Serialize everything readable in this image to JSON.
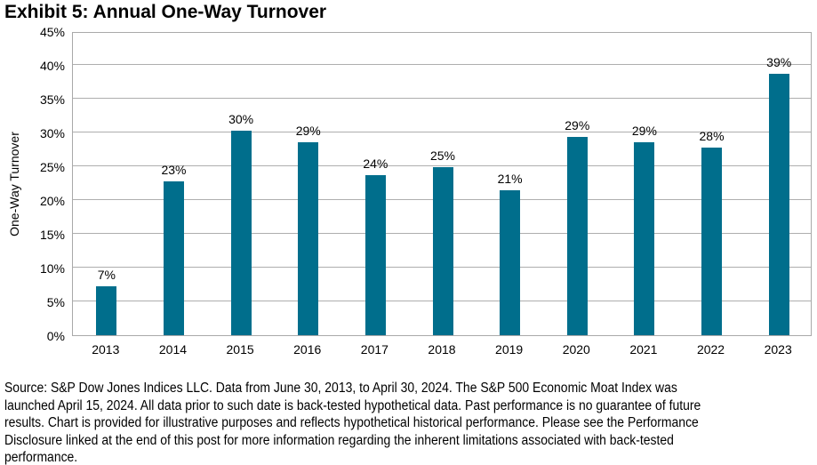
{
  "title": "Exhibit 5: Annual One-Way Turnover",
  "chart_data": {
    "type": "bar",
    "title": "Exhibit 5: Annual One-Way Turnover",
    "categories": [
      "2013",
      "2014",
      "2015",
      "2016",
      "2017",
      "2018",
      "2019",
      "2020",
      "2021",
      "2022",
      "2023"
    ],
    "values": [
      7.2,
      22.7,
      30.2,
      28.5,
      23.7,
      24.9,
      21.4,
      29.4,
      28.6,
      27.8,
      38.7
    ],
    "data_labels": [
      "7%",
      "23%",
      "30%",
      "29%",
      "24%",
      "25%",
      "21%",
      "29%",
      "29%",
      "28%",
      "39%"
    ],
    "xlabel": "",
    "ylabel": "One-Way Turnover",
    "ylim": [
      0,
      45
    ],
    "ytick_step": 5,
    "ytick_labels": [
      "0%",
      "5%",
      "10%",
      "15%",
      "20%",
      "25%",
      "30%",
      "35%",
      "40%",
      "45%"
    ],
    "grid": true,
    "legend": "none",
    "bar_color": "#006E8C"
  },
  "colors": {
    "bar": "#006E8C",
    "gridline": "#AEAEAE",
    "plot_border": "#A9A9A9",
    "text": "#000000",
    "background": "#FFFFFF"
  },
  "footer": {
    "lines": [
      "Source: S&P Dow Jones Indices LLC. Data from June 30, 2013, to April 30, 2024. The S&P 500 Economic Moat Index was",
      "launched April 15, 2024. All data prior to such date is back-tested hypothetical data. Past performance is no guarantee of future",
      "results. Chart is provided for illustrative purposes and reflects hypothetical historical performance. Please see the Performance",
      "Disclosure linked at the end of this post for more information regarding the inherent limitations associated with back-tested",
      "performance."
    ]
  }
}
